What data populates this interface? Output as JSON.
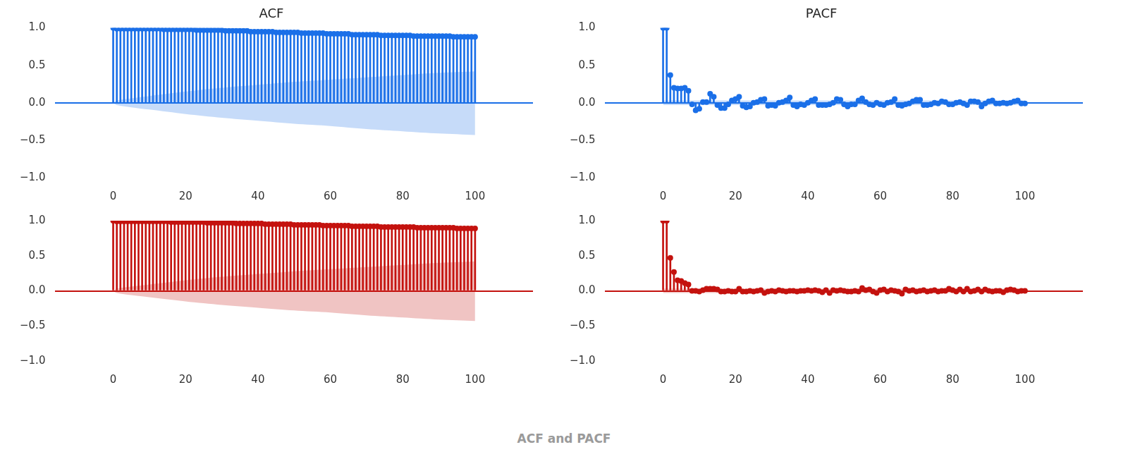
{
  "caption": "ACF and PACF",
  "chart_data": [
    {
      "type": "stem",
      "title": "ACF",
      "x": [
        0,
        1,
        2,
        3,
        4,
        5,
        6,
        7,
        8,
        9,
        10,
        11,
        12,
        13,
        14,
        15,
        16,
        17,
        18,
        19,
        20,
        21,
        22,
        23,
        24,
        25,
        26,
        27,
        28,
        29,
        30,
        31,
        32,
        33,
        34,
        35,
        36,
        37,
        38,
        39,
        40,
        41,
        42,
        43,
        44,
        45,
        46,
        47,
        48,
        49,
        50,
        51,
        52,
        53,
        54,
        55,
        56,
        57,
        58,
        59,
        60,
        61,
        62,
        63,
        64,
        65,
        66,
        67,
        68,
        69,
        70,
        71,
        72,
        73,
        74,
        75,
        76,
        77,
        78,
        79,
        80,
        81,
        82,
        83,
        84,
        85,
        86,
        87,
        88,
        89,
        90,
        91,
        92,
        93,
        94,
        95,
        96,
        97,
        98,
        99,
        100
      ],
      "series": [
        {
          "color": "#1a6fe8",
          "values": [
            1.0,
            0.99,
            0.99,
            0.99,
            0.99,
            0.99,
            0.99,
            0.99,
            0.99,
            0.99,
            0.99,
            0.99,
            0.99,
            0.99,
            0.98,
            0.98,
            0.98,
            0.98,
            0.98,
            0.98,
            0.98,
            0.98,
            0.98,
            0.97,
            0.97,
            0.97,
            0.97,
            0.97,
            0.97,
            0.97,
            0.97,
            0.96,
            0.96,
            0.96,
            0.96,
            0.96,
            0.96,
            0.96,
            0.95,
            0.95,
            0.95,
            0.95,
            0.95,
            0.95,
            0.95,
            0.94,
            0.94,
            0.94,
            0.94,
            0.94,
            0.94,
            0.94,
            0.93,
            0.93,
            0.93,
            0.93,
            0.93,
            0.93,
            0.93,
            0.92,
            0.92,
            0.92,
            0.92,
            0.92,
            0.92,
            0.92,
            0.91,
            0.91,
            0.91,
            0.91,
            0.91,
            0.91,
            0.91,
            0.91,
            0.9,
            0.9,
            0.9,
            0.9,
            0.9,
            0.9,
            0.9,
            0.9,
            0.9,
            0.89,
            0.89,
            0.89,
            0.89,
            0.89,
            0.89,
            0.89,
            0.89,
            0.89,
            0.89,
            0.89,
            0.88,
            0.88,
            0.88,
            0.88,
            0.88,
            0.88,
            0.88
          ]
        }
      ],
      "confidence_band": {
        "x": [
          0,
          1,
          5,
          10,
          20,
          30,
          40,
          50,
          60,
          70,
          80,
          90,
          100
        ],
        "upper": [
          0.0,
          0.03,
          0.06,
          0.09,
          0.15,
          0.2,
          0.24,
          0.28,
          0.31,
          0.34,
          0.37,
          0.4,
          0.42
        ],
        "lower": [
          0.0,
          -0.03,
          -0.06,
          -0.09,
          -0.15,
          -0.2,
          -0.24,
          -0.28,
          -0.31,
          -0.35,
          -0.38,
          -0.41,
          -0.43
        ]
      },
      "xlim": [
        -5,
        105
      ],
      "xticks": [
        0,
        20,
        40,
        60,
        80,
        100
      ],
      "ylim": [
        -1,
        1
      ],
      "yticks": [
        {
          "value": -1,
          "label": "−1.0"
        },
        {
          "value": -0.5,
          "label": "−0.5"
        },
        {
          "value": 0,
          "label": "0.0"
        },
        {
          "value": 0.5,
          "label": "0.5"
        },
        {
          "value": 1,
          "label": "1.0"
        }
      ]
    },
    {
      "type": "stem",
      "title": "PACF",
      "x": [
        0,
        1,
        2,
        3,
        4,
        5,
        6,
        7,
        8,
        9,
        10,
        11,
        12,
        13,
        14,
        15,
        16,
        17,
        18,
        19,
        20,
        21,
        22,
        23,
        24,
        25,
        26,
        27,
        28,
        29,
        30,
        31,
        32,
        33,
        34,
        35,
        36,
        37,
        38,
        39,
        40,
        41,
        42,
        43,
        44,
        45,
        46,
        47,
        48,
        49,
        50,
        51,
        52,
        53,
        54,
        55,
        56,
        57,
        58,
        59,
        60,
        61,
        62,
        63,
        64,
        65,
        66,
        67,
        68,
        69,
        70,
        71,
        72,
        73,
        74,
        75,
        76,
        77,
        78,
        79,
        80,
        81,
        82,
        83,
        84,
        85,
        86,
        87,
        88,
        89,
        90,
        91,
        92,
        93,
        94,
        95,
        96,
        97,
        98,
        99,
        100
      ],
      "series": [
        {
          "color": "#1a6fe8",
          "values": [
            1.0,
            1.0,
            0.37,
            0.2,
            0.19,
            0.19,
            0.2,
            0.16,
            -0.02,
            -0.1,
            -0.08,
            0.01,
            0.01,
            0.12,
            0.08,
            -0.03,
            -0.07,
            -0.07,
            -0.02,
            0.03,
            0.05,
            0.08,
            -0.04,
            -0.06,
            -0.05,
            0.0,
            0.01,
            0.04,
            0.05,
            -0.04,
            -0.03,
            -0.04,
            0.0,
            0.01,
            0.03,
            0.07,
            -0.03,
            -0.05,
            -0.02,
            -0.03,
            0.0,
            0.03,
            0.05,
            -0.03,
            -0.03,
            -0.03,
            -0.02,
            0.0,
            0.05,
            0.04,
            -0.02,
            -0.05,
            -0.02,
            -0.02,
            0.03,
            0.06,
            0.01,
            -0.02,
            -0.03,
            0.0,
            -0.02,
            -0.03,
            0.0,
            0.01,
            0.05,
            -0.03,
            -0.04,
            -0.02,
            -0.01,
            0.02,
            0.04,
            0.04,
            -0.03,
            -0.03,
            -0.02,
            0.0,
            -0.01,
            0.02,
            0.01,
            -0.02,
            -0.02,
            0.0,
            0.01,
            -0.01,
            -0.03,
            0.02,
            0.02,
            0.01,
            -0.05,
            -0.01,
            0.02,
            0.03,
            -0.01,
            -0.01,
            0.0,
            -0.01,
            0.0,
            0.02,
            0.03,
            -0.01,
            -0.01
          ]
        }
      ],
      "confidence_band": {
        "x": [
          0,
          100
        ],
        "upper": [
          0.03,
          0.03
        ],
        "lower": [
          -0.03,
          -0.03
        ]
      },
      "xlim": [
        -5,
        105
      ],
      "xticks": [
        0,
        20,
        40,
        60,
        80,
        100
      ],
      "ylim": [
        -1,
        1
      ],
      "yticks": [
        {
          "value": -1,
          "label": "−1.0"
        },
        {
          "value": -0.5,
          "label": "−0.5"
        },
        {
          "value": 0,
          "label": "0.0"
        },
        {
          "value": 0.5,
          "label": "0.5"
        },
        {
          "value": 1,
          "label": "1.0"
        }
      ]
    },
    {
      "type": "stem",
      "x": [
        0,
        1,
        2,
        3,
        4,
        5,
        6,
        7,
        8,
        9,
        10,
        11,
        12,
        13,
        14,
        15,
        16,
        17,
        18,
        19,
        20,
        21,
        22,
        23,
        24,
        25,
        26,
        27,
        28,
        29,
        30,
        31,
        32,
        33,
        34,
        35,
        36,
        37,
        38,
        39,
        40,
        41,
        42,
        43,
        44,
        45,
        46,
        47,
        48,
        49,
        50,
        51,
        52,
        53,
        54,
        55,
        56,
        57,
        58,
        59,
        60,
        61,
        62,
        63,
        64,
        65,
        66,
        67,
        68,
        69,
        70,
        71,
        72,
        73,
        74,
        75,
        76,
        77,
        78,
        79,
        80,
        81,
        82,
        83,
        84,
        85,
        86,
        87,
        88,
        89,
        90,
        91,
        92,
        93,
        94,
        95,
        96,
        97,
        98,
        99,
        100
      ],
      "series": [
        {
          "color": "#c4120e",
          "values": [
            1.0,
            0.99,
            0.99,
            0.99,
            0.99,
            0.99,
            0.99,
            0.99,
            0.99,
            0.99,
            0.99,
            0.99,
            0.99,
            0.99,
            0.99,
            0.99,
            0.98,
            0.98,
            0.98,
            0.98,
            0.98,
            0.98,
            0.98,
            0.98,
            0.98,
            0.98,
            0.97,
            0.97,
            0.97,
            0.97,
            0.97,
            0.97,
            0.97,
            0.97,
            0.96,
            0.96,
            0.96,
            0.96,
            0.96,
            0.96,
            0.96,
            0.96,
            0.95,
            0.95,
            0.95,
            0.95,
            0.95,
            0.95,
            0.95,
            0.95,
            0.94,
            0.94,
            0.94,
            0.94,
            0.94,
            0.94,
            0.94,
            0.94,
            0.93,
            0.93,
            0.93,
            0.93,
            0.93,
            0.93,
            0.93,
            0.93,
            0.92,
            0.92,
            0.92,
            0.92,
            0.92,
            0.92,
            0.92,
            0.92,
            0.91,
            0.91,
            0.91,
            0.91,
            0.91,
            0.91,
            0.91,
            0.91,
            0.91,
            0.91,
            0.9,
            0.9,
            0.9,
            0.9,
            0.9,
            0.9,
            0.9,
            0.9,
            0.9,
            0.9,
            0.9,
            0.89,
            0.89,
            0.89,
            0.89,
            0.89,
            0.89
          ]
        }
      ],
      "confidence_band": {
        "x": [
          0,
          1,
          5,
          10,
          20,
          30,
          40,
          50,
          60,
          70,
          80,
          90,
          100
        ],
        "upper": [
          0.0,
          0.03,
          0.06,
          0.09,
          0.15,
          0.2,
          0.24,
          0.28,
          0.31,
          0.34,
          0.37,
          0.4,
          0.42
        ],
        "lower": [
          0.0,
          -0.03,
          -0.06,
          -0.09,
          -0.15,
          -0.2,
          -0.24,
          -0.28,
          -0.31,
          -0.35,
          -0.38,
          -0.41,
          -0.43
        ]
      },
      "xlim": [
        -5,
        105
      ],
      "xticks": [
        0,
        20,
        40,
        60,
        80,
        100
      ],
      "ylim": [
        -1,
        1
      ],
      "yticks": [
        {
          "value": -1,
          "label": "−1.0"
        },
        {
          "value": -0.5,
          "label": "−0.5"
        },
        {
          "value": 0,
          "label": "0.0"
        },
        {
          "value": 0.5,
          "label": "0.5"
        },
        {
          "value": 1,
          "label": "1.0"
        }
      ]
    },
    {
      "type": "stem",
      "x": [
        0,
        1,
        2,
        3,
        4,
        5,
        6,
        7,
        8,
        9,
        10,
        11,
        12,
        13,
        14,
        15,
        16,
        17,
        18,
        19,
        20,
        21,
        22,
        23,
        24,
        25,
        26,
        27,
        28,
        29,
        30,
        31,
        32,
        33,
        34,
        35,
        36,
        37,
        38,
        39,
        40,
        41,
        42,
        43,
        44,
        45,
        46,
        47,
        48,
        49,
        50,
        51,
        52,
        53,
        54,
        55,
        56,
        57,
        58,
        59,
        60,
        61,
        62,
        63,
        64,
        65,
        66,
        67,
        68,
        69,
        70,
        71,
        72,
        73,
        74,
        75,
        76,
        77,
        78,
        79,
        80,
        81,
        82,
        83,
        84,
        85,
        86,
        87,
        88,
        89,
        90,
        91,
        92,
        93,
        94,
        95,
        96,
        97,
        98,
        99,
        100
      ],
      "series": [
        {
          "color": "#c4120e",
          "values": [
            1.0,
            1.0,
            0.47,
            0.27,
            0.15,
            0.14,
            0.11,
            0.09,
            0.0,
            0.0,
            -0.01,
            0.01,
            0.03,
            0.03,
            0.03,
            0.02,
            -0.01,
            -0.01,
            0.0,
            -0.01,
            -0.01,
            0.03,
            -0.01,
            -0.01,
            0.0,
            -0.01,
            0.0,
            0.01,
            -0.03,
            -0.01,
            0.0,
            -0.01,
            0.01,
            0.0,
            -0.01,
            0.0,
            0.0,
            -0.01,
            0.0,
            0.0,
            0.01,
            0.0,
            0.01,
            0.0,
            -0.02,
            0.01,
            -0.03,
            0.01,
            0.0,
            0.01,
            0.0,
            -0.01,
            -0.01,
            0.0,
            -0.01,
            0.04,
            0.01,
            0.02,
            -0.01,
            -0.03,
            0.01,
            0.02,
            -0.01,
            0.01,
            0.0,
            -0.01,
            -0.04,
            0.02,
            0.0,
            0.01,
            -0.01,
            0.0,
            0.01,
            -0.01,
            0.0,
            0.01,
            -0.01,
            0.0,
            0.0,
            0.03,
            0.01,
            -0.01,
            0.02,
            -0.01,
            0.03,
            -0.01,
            0.0,
            0.02,
            -0.01,
            0.02,
            0.0,
            -0.01,
            0.0,
            0.0,
            -0.02,
            0.01,
            0.02,
            0.01,
            -0.01,
            0.0,
            0.0
          ]
        }
      ],
      "confidence_band": {
        "x": [
          0,
          100
        ],
        "upper": [
          0.03,
          0.03
        ],
        "lower": [
          -0.03,
          -0.03
        ]
      },
      "xlim": [
        -5,
        105
      ],
      "xticks": [
        0,
        20,
        40,
        60,
        80,
        100
      ],
      "ylim": [
        -1,
        1
      ],
      "yticks": [
        {
          "value": -1,
          "label": "−1.0"
        },
        {
          "value": -0.5,
          "label": "−0.5"
        },
        {
          "value": 0,
          "label": "0.0"
        },
        {
          "value": 0.5,
          "label": "0.5"
        },
        {
          "value": 1,
          "label": "1.0"
        }
      ]
    }
  ]
}
